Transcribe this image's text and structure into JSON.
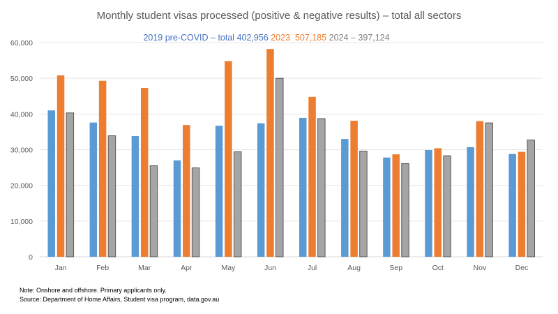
{
  "chart_data": {
    "type": "bar",
    "title": "Monthly student visas processed (positive & negative results) – total all sectors",
    "categories": [
      "Jan",
      "Feb",
      "Mar",
      "Apr",
      "May",
      "Jun",
      "Jul",
      "Aug",
      "Sep",
      "Oct",
      "Nov",
      "Dec"
    ],
    "series": [
      {
        "name": "2019 pre-COVID – total 402,956",
        "color": "#5B9BD5",
        "values": [
          41000,
          37600,
          33800,
          27000,
          36700,
          37400,
          38900,
          33000,
          27800,
          29900,
          30700,
          28800
        ]
      },
      {
        "name": "2023  507,185",
        "color": "#ED7D31",
        "values": [
          50800,
          49300,
          47300,
          36900,
          54800,
          58200,
          44800,
          38100,
          28700,
          30400,
          38000,
          29400
        ]
      },
      {
        "name": "2024 – 397,124",
        "color": "#A5A5A5",
        "values": [
          40300,
          33900,
          25500,
          24900,
          29400,
          50000,
          38700,
          29600,
          26100,
          28300,
          37500,
          32700
        ]
      }
    ],
    "ylim": [
      0,
      60000
    ],
    "yticks": [
      0,
      10000,
      20000,
      30000,
      40000,
      50000,
      60000
    ],
    "ytick_labels": [
      "0",
      "10,000",
      "20,000",
      "30,000",
      "40,000",
      "50,000",
      "60,000"
    ],
    "xlabel": "",
    "ylabel": "",
    "grid": true,
    "legend_placement": "top"
  },
  "notes": {
    "line1": "Note: Onshore and offshore. Primary applicants only.",
    "line2": "Source: Department of Home Affairs, Student visa program, data.gov.au"
  }
}
